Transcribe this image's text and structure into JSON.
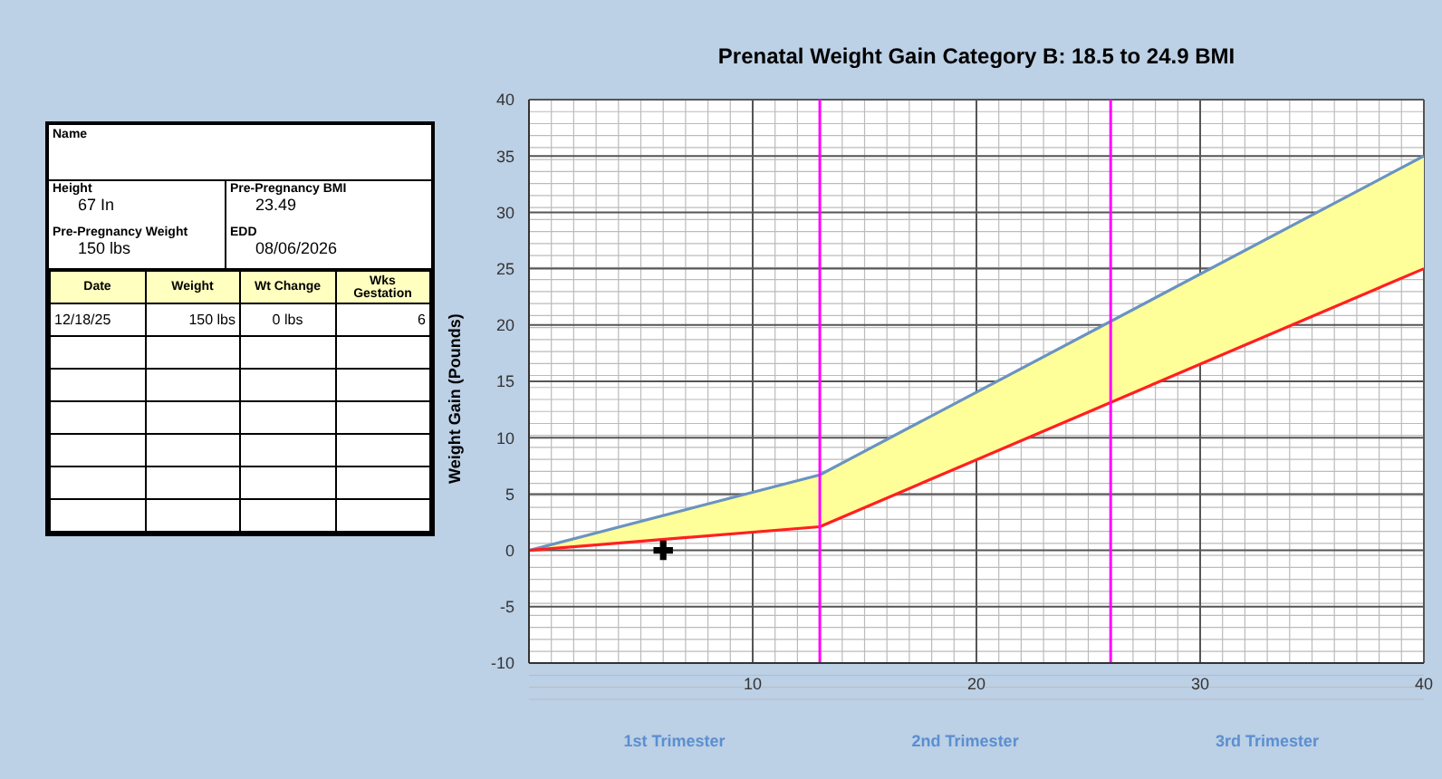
{
  "chart_data": [
    {
      "type": "other",
      "annotations": [
        "Name",
        "Height",
        "67 In",
        "Pre-Pregnancy BMI",
        "23.49",
        "Pre-Pregnancy Weight",
        "150 lbs",
        "EDD",
        "08/06/2026",
        "Date",
        "Weight",
        "Wt Change",
        "Wks Gestation",
        "12/18/25",
        "150 lbs",
        "0 lbs",
        "6"
      ]
    },
    {
      "type": "line",
      "title": "Prenatal Weight Gain Category B: 18.5 to 24.9 BMI",
      "ylabel": "Weight Gain (Pounds)",
      "x": [
        0,
        13,
        40
      ],
      "series": [
        {
          "color": "#6b93c0",
          "values": [
            0,
            6.7,
            35
          ],
          "lower": [
            0,
            2.1,
            25
          ],
          "upper": [
            0,
            6.7,
            35
          ]
        },
        {
          "color": "#ff2020",
          "values": [
            0,
            2.1,
            25
          ]
        },
        {
          "type": "scatter",
          "x": [
            6
          ],
          "values": [
            0
          ],
          "color": "#000000",
          "marker": "cross"
        }
      ],
      "xlim": [
        0,
        40
      ],
      "xticks": [
        10,
        20,
        30,
        40
      ],
      "ylim": [
        -10,
        40
      ],
      "yticks": [
        -10,
        -5,
        0,
        5,
        10,
        15,
        20,
        25,
        30,
        35,
        40
      ],
      "grid": true,
      "legend": false,
      "ref_lines": [
        {
          "axis": "x",
          "value": 13,
          "color": "#ff00ff"
        },
        {
          "axis": "x",
          "value": 26,
          "color": "#ff00ff"
        }
      ],
      "annotations": [
        "1st Trimester",
        "2nd Trimester",
        "3rd Trimester"
      ]
    }
  ]
}
